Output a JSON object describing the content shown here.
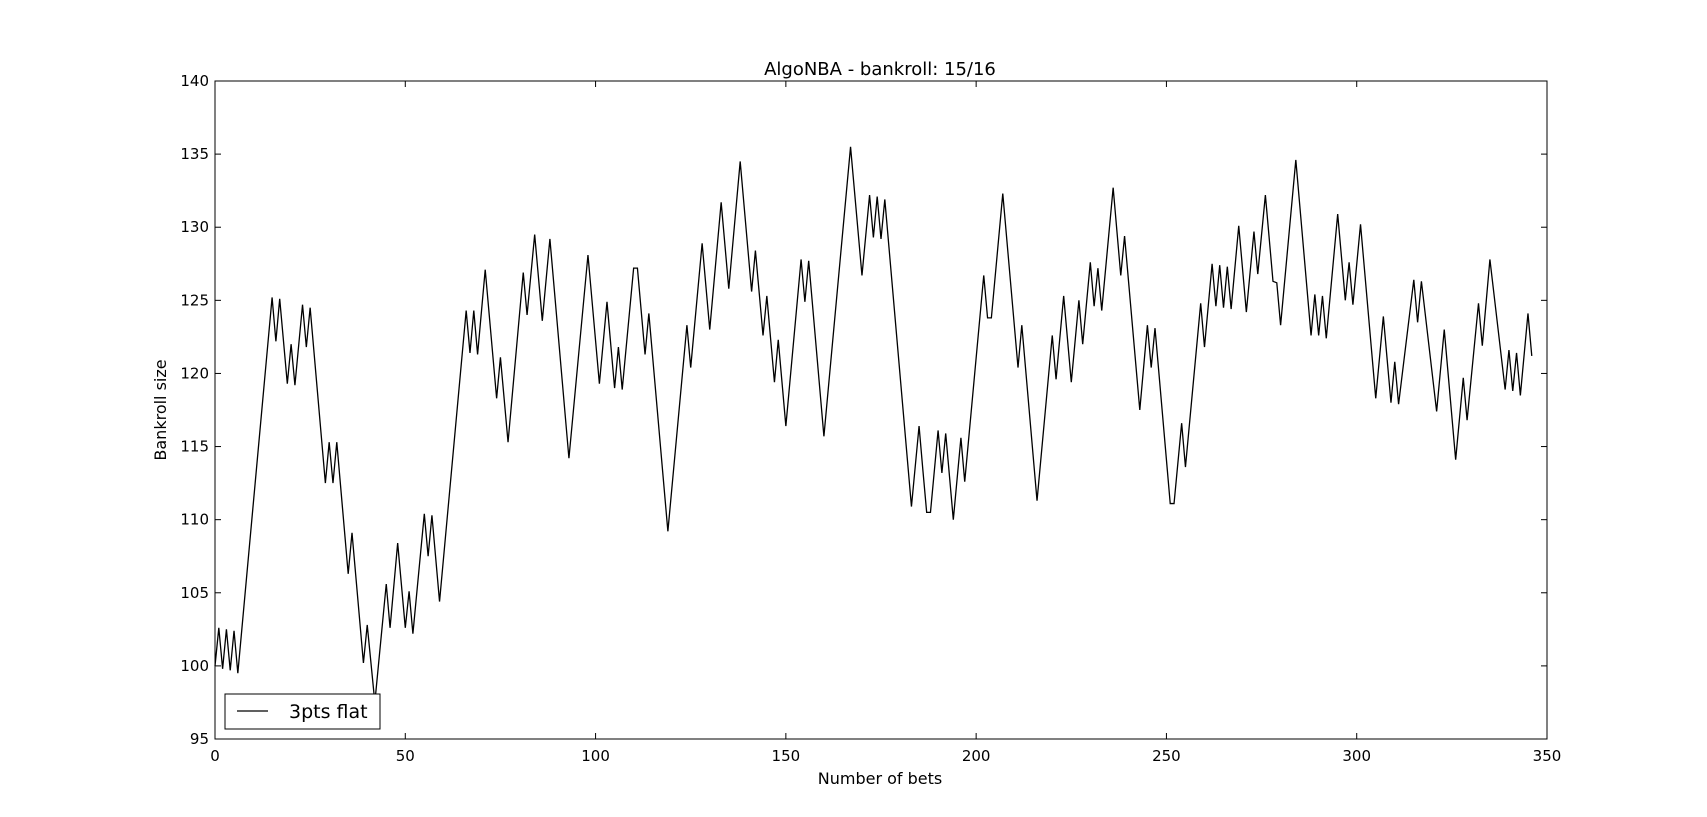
{
  "chart_data": {
    "type": "line",
    "title": "AlgoNBA - bankroll: 15/16",
    "xlabel": "Number of bets",
    "ylabel": "Bankroll size",
    "xlim": [
      0,
      350
    ],
    "ylim": [
      95,
      140
    ],
    "xticks": [
      "0",
      "50",
      "100",
      "150",
      "200",
      "250",
      "300",
      "350"
    ],
    "yticks": [
      "95",
      "100",
      "105",
      "110",
      "115",
      "120",
      "125",
      "130",
      "135",
      "140"
    ],
    "grid": false,
    "legend_position": "lower-left",
    "line_color": "#000000",
    "series": [
      {
        "name": "3pts flat",
        "points": [
          [
            0,
            100
          ],
          [
            1,
            102.6
          ],
          [
            2,
            99.8
          ],
          [
            3,
            102.5
          ],
          [
            4,
            99.7
          ],
          [
            5,
            102.4
          ],
          [
            6,
            99.5
          ],
          [
            15,
            125.2
          ],
          [
            16,
            122.2
          ],
          [
            17,
            125.1
          ],
          [
            19,
            119.3
          ],
          [
            20,
            122
          ],
          [
            21,
            119.2
          ],
          [
            23,
            124.7
          ],
          [
            24,
            121.8
          ],
          [
            25,
            124.5
          ],
          [
            29,
            112.5
          ],
          [
            30,
            115.3
          ],
          [
            31,
            112.5
          ],
          [
            32,
            115.3
          ],
          [
            35,
            106.3
          ],
          [
            36,
            109.1
          ],
          [
            39,
            100.2
          ],
          [
            40,
            102.8
          ],
          [
            42,
            97.5
          ],
          [
            45,
            105.6
          ],
          [
            46,
            102.6
          ],
          [
            48,
            108.4
          ],
          [
            50,
            102.6
          ],
          [
            51,
            105.1
          ],
          [
            52,
            102.2
          ],
          [
            55,
            110.4
          ],
          [
            56,
            107.5
          ],
          [
            57,
            110.3
          ],
          [
            59,
            104.4
          ],
          [
            66,
            124.3
          ],
          [
            67,
            121.4
          ],
          [
            68,
            124.3
          ],
          [
            69,
            121.3
          ],
          [
            71,
            127.1
          ],
          [
            74,
            118.3
          ],
          [
            75,
            121.1
          ],
          [
            77,
            115.3
          ],
          [
            81,
            126.9
          ],
          [
            82,
            124
          ],
          [
            84,
            129.5
          ],
          [
            86,
            123.6
          ],
          [
            88,
            129.2
          ],
          [
            93,
            114.2
          ],
          [
            98,
            128.1
          ],
          [
            101,
            119.3
          ],
          [
            103,
            124.9
          ],
          [
            105,
            119
          ],
          [
            106,
            121.8
          ],
          [
            107,
            118.9
          ],
          [
            110,
            127.2
          ],
          [
            111,
            127.2
          ],
          [
            113,
            121.3
          ],
          [
            114,
            124.1
          ],
          [
            119,
            109.2
          ],
          [
            124,
            123.3
          ],
          [
            125,
            120.4
          ],
          [
            128,
            128.9
          ],
          [
            130,
            123
          ],
          [
            133,
            131.7
          ],
          [
            135,
            125.8
          ],
          [
            138,
            134.5
          ],
          [
            141,
            125.6
          ],
          [
            142,
            128.4
          ],
          [
            144,
            122.6
          ],
          [
            145,
            125.3
          ],
          [
            147,
            119.4
          ],
          [
            148,
            122.3
          ],
          [
            150,
            116.4
          ],
          [
            154,
            127.8
          ],
          [
            155,
            124.9
          ],
          [
            156,
            127.7
          ],
          [
            160,
            115.7
          ],
          [
            167,
            135.5
          ],
          [
            170,
            126.7
          ],
          [
            172,
            132.2
          ],
          [
            173,
            129.3
          ],
          [
            174,
            132.1
          ],
          [
            175,
            129.2
          ],
          [
            176,
            131.9
          ],
          [
            183,
            110.9
          ],
          [
            185,
            116.4
          ],
          [
            186,
            113.4
          ],
          [
            187,
            110.5
          ],
          [
            188,
            110.5
          ],
          [
            190,
            116.1
          ],
          [
            191,
            113.2
          ],
          [
            192,
            115.9
          ],
          [
            194,
            110
          ],
          [
            196,
            115.6
          ],
          [
            197,
            112.6
          ],
          [
            202,
            126.7
          ],
          [
            203,
            123.8
          ],
          [
            204,
            123.8
          ],
          [
            207,
            132.3
          ],
          [
            211,
            120.4
          ],
          [
            212,
            123.3
          ],
          [
            216,
            111.3
          ],
          [
            220,
            122.6
          ],
          [
            221,
            119.6
          ],
          [
            223,
            125.3
          ],
          [
            225,
            119.4
          ],
          [
            227,
            125
          ],
          [
            228,
            122
          ],
          [
            230,
            127.6
          ],
          [
            231,
            124.6
          ],
          [
            232,
            127.2
          ],
          [
            233,
            124.3
          ],
          [
            236,
            132.7
          ],
          [
            238,
            126.7
          ],
          [
            239,
            129.4
          ],
          [
            243,
            117.5
          ],
          [
            245,
            123.3
          ],
          [
            246,
            120.4
          ],
          [
            247,
            123.1
          ],
          [
            251,
            111.1
          ],
          [
            252,
            111.1
          ],
          [
            254,
            116.6
          ],
          [
            255,
            113.6
          ],
          [
            259,
            124.8
          ],
          [
            260,
            121.8
          ],
          [
            262,
            127.5
          ],
          [
            263,
            124.6
          ],
          [
            264,
            127.4
          ],
          [
            265,
            124.5
          ],
          [
            266,
            127.3
          ],
          [
            267,
            124.4
          ],
          [
            269,
            130.1
          ],
          [
            271,
            124.2
          ],
          [
            273,
            129.7
          ],
          [
            274,
            126.8
          ],
          [
            276,
            132.2
          ],
          [
            278,
            126.3
          ],
          [
            279,
            126.2
          ],
          [
            280,
            123.3
          ],
          [
            284,
            134.6
          ],
          [
            288,
            122.6
          ],
          [
            289,
            125.4
          ],
          [
            290,
            122.6
          ],
          [
            291,
            125.3
          ],
          [
            292,
            122.4
          ],
          [
            295,
            130.9
          ],
          [
            297,
            125
          ],
          [
            298,
            127.6
          ],
          [
            299,
            124.7
          ],
          [
            301,
            130.2
          ],
          [
            305,
            118.3
          ],
          [
            307,
            123.9
          ],
          [
            309,
            118
          ],
          [
            310,
            120.8
          ],
          [
            311,
            117.9
          ],
          [
            315,
            126.4
          ],
          [
            316,
            123.5
          ],
          [
            317,
            126.3
          ],
          [
            321,
            117.4
          ],
          [
            323,
            123
          ],
          [
            326,
            114.1
          ],
          [
            328,
            119.7
          ],
          [
            329,
            116.8
          ],
          [
            332,
            124.8
          ],
          [
            333,
            121.9
          ],
          [
            335,
            127.8
          ],
          [
            339,
            118.9
          ],
          [
            340,
            121.6
          ],
          [
            341,
            118.8
          ],
          [
            342,
            121.4
          ],
          [
            343,
            118.5
          ],
          [
            345,
            124.1
          ],
          [
            346,
            121.2
          ]
        ]
      }
    ]
  }
}
